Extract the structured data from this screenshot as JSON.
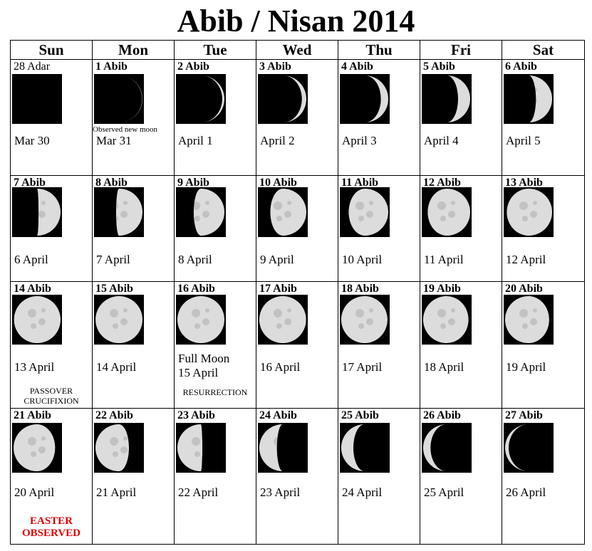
{
  "title": "Abib / Nisan 2014",
  "days": [
    "Sun",
    "Mon",
    "Tue",
    "Wed",
    "Thu",
    "Fri",
    "Sat"
  ],
  "weeks": [
    [
      {
        "hebrew": "28 Adar",
        "gregorian": "Mar 30",
        "phase": 0.0
      },
      {
        "hebrew": "1 Abib",
        "gregorian": "Mar 31",
        "phase": 0.03,
        "note": "Observed new moon"
      },
      {
        "hebrew": "2 Abib",
        "gregorian": "April 1",
        "phase": 0.07
      },
      {
        "hebrew": "3 Abib",
        "gregorian": "April 2",
        "phase": 0.1
      },
      {
        "hebrew": "4 Abib",
        "gregorian": "April 3",
        "phase": 0.13
      },
      {
        "hebrew": "5 Abib",
        "gregorian": "April 4",
        "phase": 0.17
      },
      {
        "hebrew": "6 Abib",
        "gregorian": "April 5",
        "phase": 0.2
      }
    ],
    [
      {
        "hebrew": "7 Abib",
        "gregorian": "6 April",
        "phase": 0.24
      },
      {
        "hebrew": "8 Abib",
        "gregorian": "7 April",
        "phase": 0.27
      },
      {
        "hebrew": "9 Abib",
        "gregorian": "8 April",
        "phase": 0.3
      },
      {
        "hebrew": "10 Abib",
        "gregorian": "9 April",
        "phase": 0.34
      },
      {
        "hebrew": "11 Abib",
        "gregorian": "10 April",
        "phase": 0.37
      },
      {
        "hebrew": "12 Abib",
        "gregorian": "11 April",
        "phase": 0.4
      },
      {
        "hebrew": "13 Abib",
        "gregorian": "12 April",
        "phase": 0.44
      }
    ],
    [
      {
        "hebrew": "14 Abib",
        "gregorian": "13 April",
        "phase": 0.47,
        "note": "PASSOVER\nCRUCIFIXION"
      },
      {
        "hebrew": "15 Abib",
        "gregorian": "14 April",
        "phase": 0.49
      },
      {
        "hebrew": "16 Abib",
        "gregorian": "15 April",
        "phase": 0.5,
        "extra": "Full Moon",
        "note": "RESURRECTION"
      },
      {
        "hebrew": "17 Abib",
        "gregorian": "16 April",
        "phase": 0.52
      },
      {
        "hebrew": "18 Abib",
        "gregorian": "17 April",
        "phase": 0.54
      },
      {
        "hebrew": "19 Abib",
        "gregorian": "18 April",
        "phase": 0.56
      },
      {
        "hebrew": "20 Abib",
        "gregorian": "19 April",
        "phase": 0.58
      }
    ],
    [
      {
        "hebrew": "21 Abib",
        "gregorian": "20 April",
        "phase": 0.61,
        "easter": "EASTER\nOBSERVED"
      },
      {
        "hebrew": "22 Abib",
        "gregorian": "21 April",
        "phase": 0.68
      },
      {
        "hebrew": "23 Abib",
        "gregorian": "22 April",
        "phase": 0.74
      },
      {
        "hebrew": "24 Abib",
        "gregorian": "23 April",
        "phase": 0.79
      },
      {
        "hebrew": "25 Abib",
        "gregorian": "24 April",
        "phase": 0.83
      },
      {
        "hebrew": "26 Abib",
        "gregorian": "25 April",
        "phase": 0.87
      },
      {
        "hebrew": "27 Abib",
        "gregorian": "26 April",
        "phase": 0.91
      }
    ]
  ],
  "colors": {
    "easter": "#e00000",
    "moon_light": "#dcdcdc",
    "moon_shadow": "#000000"
  }
}
